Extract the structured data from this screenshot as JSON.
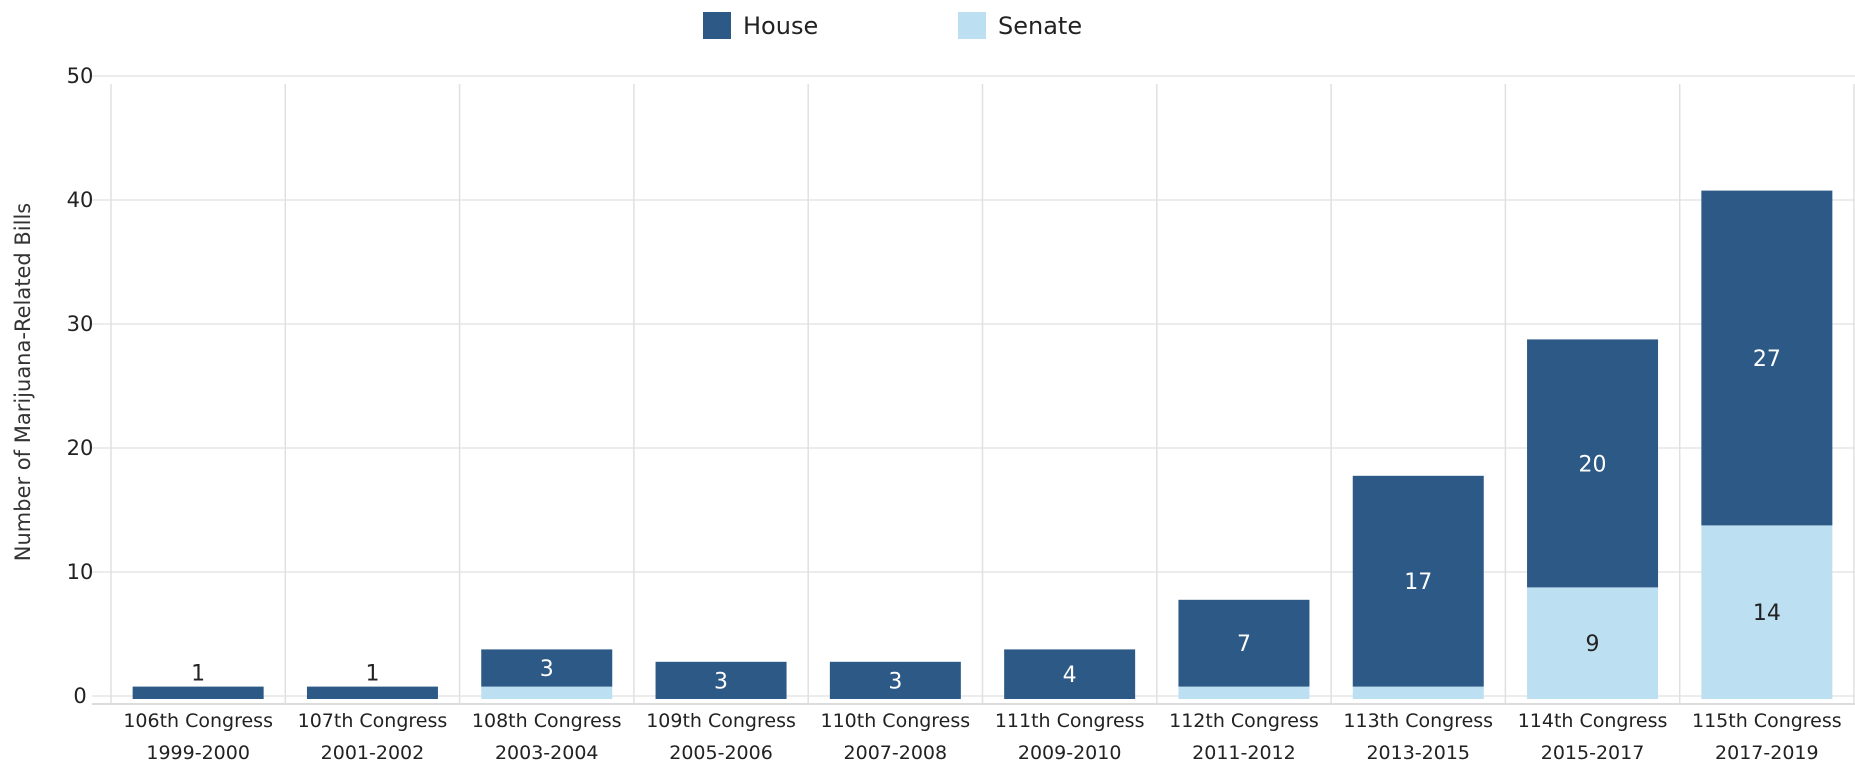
{
  "chart_data": {
    "type": "bar",
    "stacked": true,
    "categories": [
      "106th Congress|1999-2000",
      "107th Congress|2001-2002",
      "108th Congress|2003-2004",
      "109th Congress|2005-2006",
      "110th Congress|2007-2008",
      "111th Congress|2009-2010",
      "112th Congress|2011-2012",
      "113th Congress|2013-2015",
      "114th Congress|2015-2017",
      "115th Congress|2017-2019"
    ],
    "series": [
      {
        "name": "Senate",
        "color": "#bcdff1",
        "values": [
          0,
          0,
          1,
          0,
          0,
          0,
          1,
          1,
          9,
          14
        ],
        "labels": [
          "",
          "",
          "",
          "",
          "",
          "",
          "",
          "",
          "9",
          "14"
        ]
      },
      {
        "name": "House",
        "color": "#2c5985",
        "values": [
          1,
          1,
          3,
          3,
          3,
          4,
          7,
          17,
          20,
          27
        ],
        "labels": [
          "1",
          "1",
          "3",
          "3",
          "3",
          "4",
          "7",
          "17",
          "20",
          "27"
        ]
      }
    ],
    "ylabel": "Number of Marijuana-Related Bills",
    "xlabel": "",
    "ylim": [
      -1,
      50
    ],
    "yticks": [
      50,
      40,
      30,
      20,
      10,
      0
    ],
    "grid": true,
    "legend": {
      "position": "top-center",
      "order": [
        "House",
        "Senate"
      ]
    }
  }
}
